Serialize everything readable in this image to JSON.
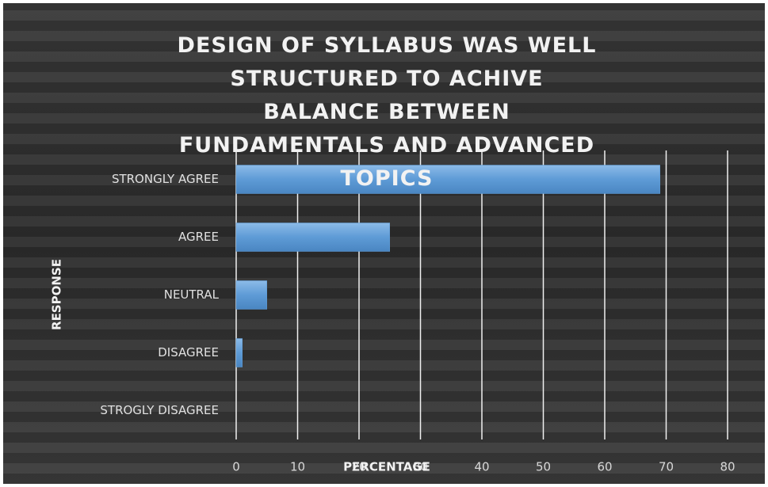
{
  "chart_data": {
    "type": "barh",
    "title": "DESIGN OF SYLLABUS WAS WELL STRUCTURED TO ACHIVE BALANCE BETWEEN FUNDAMENTALS AND ADVANCED TOPICS",
    "xlabel": "PERCENTAGE",
    "ylabel": "RESPONSE",
    "categories": [
      "STRONGLY AGREE",
      "AGREE",
      "NEUTRAL",
      "DISAGREE",
      "STROGLY DISAGREE"
    ],
    "values": [
      69,
      25,
      5,
      1,
      0
    ],
    "color": "#5e9bd6",
    "xlim": [
      0,
      80
    ],
    "xticks": [
      0,
      10,
      20,
      30,
      40,
      50,
      60,
      70,
      80
    ],
    "grid": true
  }
}
